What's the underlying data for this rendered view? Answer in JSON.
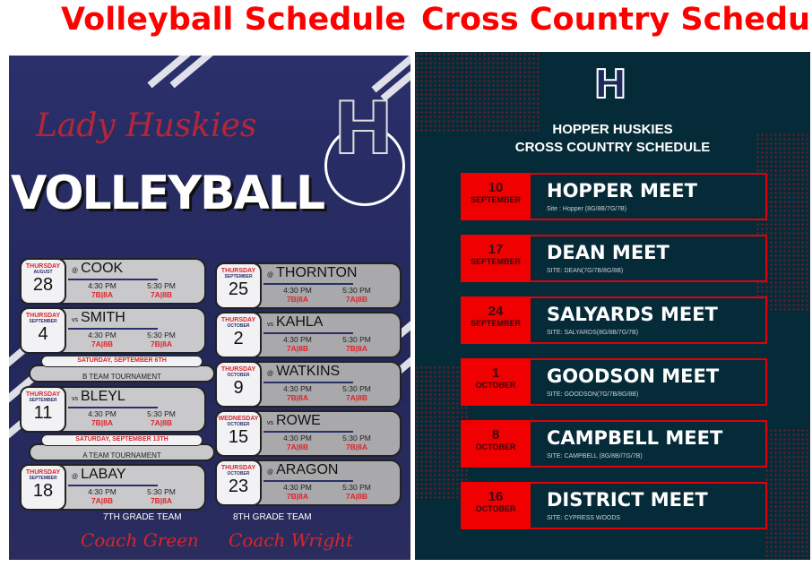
{
  "titles": {
    "volleyball": "Volleyball Schedule",
    "cross_country": "Cross Country Schedule"
  },
  "volleyball": {
    "script_title": "Lady Huskies",
    "word": "VOLLEYBALL",
    "logo_letter": "H",
    "games_left": [
      {
        "dow": "THURSDAY",
        "month": "AUGUST",
        "day": "28",
        "prefix": "@",
        "opponent": "COOK",
        "t1": "4:30 PM",
        "g1": "7B|8A",
        "t2": "5:30 PM",
        "g2": "7A|8B"
      },
      {
        "dow": "THURSDAY",
        "month": "SEPTEMBER",
        "day": "4",
        "prefix": "vs",
        "opponent": "SMITH",
        "t1": "4:30 PM",
        "g1": "7A|8B",
        "t2": "5:30 PM",
        "g2": "7B|8A"
      },
      {
        "dow": "THURSDAY",
        "month": "SEPTEMBER",
        "day": "11",
        "prefix": "vs",
        "opponent": "BLEYL",
        "t1": "4:30 PM",
        "g1": "7B|8A",
        "t2": "5:30 PM",
        "g2": "7A|8B"
      },
      {
        "dow": "THURSDAY",
        "month": "SEPTEMBER",
        "day": "18",
        "prefix": "@",
        "opponent": "LABAY",
        "t1": "4:30 PM",
        "g1": "7A|8B",
        "t2": "5:30 PM",
        "g2": "7B|8A"
      }
    ],
    "tournaments": [
      {
        "date": "SATURDAY, SEPTEMBER 6TH",
        "name": "B TEAM TOURNAMENT"
      },
      {
        "date": "SATURDAY, SEPTEMBER 13TH",
        "name": "A TEAM TOURNAMENT"
      }
    ],
    "games_right": [
      {
        "dow": "THURSDAY",
        "month": "SEPTEMBER",
        "day": "25",
        "prefix": "@",
        "opponent": "THORNTON",
        "t1": "4:30 PM",
        "g1": "7B|8A",
        "t2": "5:30 PM",
        "g2": "7A|8B"
      },
      {
        "dow": "THURSDAY",
        "month": "OCTOBER",
        "day": "2",
        "prefix": "vs",
        "opponent": "KAHLA",
        "t1": "4:30 PM",
        "g1": "7A|8B",
        "t2": "5:30 PM",
        "g2": "7B|8A"
      },
      {
        "dow": "THURSDAY",
        "month": "OCTOBER",
        "day": "9",
        "prefix": "@",
        "opponent": "WATKINS",
        "t1": "4:30 PM",
        "g1": "7B|8A",
        "t2": "5:30 PM",
        "g2": "7A|8B"
      },
      {
        "dow": "WEDNESDAY",
        "month": "OCTOBER",
        "day": "15",
        "prefix": "vs",
        "opponent": "ROWE",
        "t1": "4:30 PM",
        "g1": "7A|8B",
        "t2": "5:30 PM",
        "g2": "7B|8A"
      },
      {
        "dow": "THURSDAY",
        "month": "OCTOBER",
        "day": "23",
        "prefix": "@",
        "opponent": "ARAGON",
        "t1": "4:30 PM",
        "g1": "7B|8A",
        "t2": "5:30 PM",
        "g2": "7A|8B"
      }
    ],
    "team7": {
      "label": "7TH GRADE TEAM",
      "coach": "Coach Green"
    },
    "team8": {
      "label": "8TH GRADE TEAM",
      "coach": "Coach Wright"
    }
  },
  "cross_country": {
    "logo_letter": "H",
    "heading1": "HOPPER HUSKIES",
    "heading2": "CROSS COUNTRY SCHEDULE",
    "meets": [
      {
        "day": "10",
        "month": "SEPTEMBER",
        "name": "HOPPER MEET",
        "site": "Site : Hopper (8G/8B/7G/7B)"
      },
      {
        "day": "17",
        "month": "SEPTEMBER",
        "name": "DEAN MEET",
        "site": "SITE: DEAN(7G/7B/8G/8B)"
      },
      {
        "day": "24",
        "month": "SEPTEMBER",
        "name": "SALYARDS MEET",
        "site": "SITE: SALYARDS(8G/8B/7G/7B)"
      },
      {
        "day": "1",
        "month": "OCTOBER",
        "name": "GOODSON MEET",
        "site": "SITE: GOODSON(7G/7B/8G/8B)"
      },
      {
        "day": "8",
        "month": "OCTOBER",
        "name": "CAMPBELL MEET",
        "site": "SITE: CAMPBELL (8G/8B//7G/7B)"
      },
      {
        "day": "16",
        "month": "OCTOBER",
        "name": "DISTRICT MEET",
        "site": "SITE: CYPRESS WOODS"
      }
    ]
  },
  "colors": {
    "red": "#f00000",
    "navy": "#2b2f6b",
    "teal": "#062b38"
  }
}
